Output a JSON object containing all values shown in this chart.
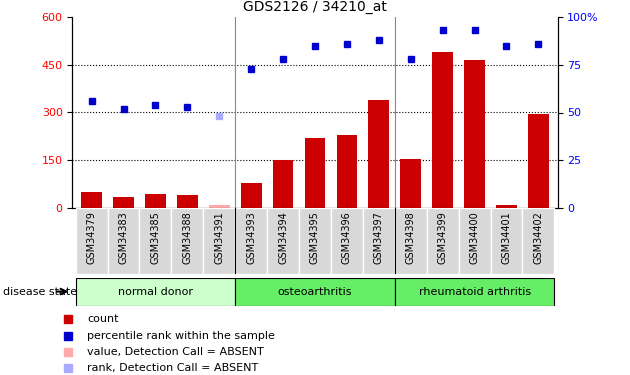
{
  "title": "GDS2126 / 34210_at",
  "samples": [
    "GSM34379",
    "GSM34383",
    "GSM34385",
    "GSM34388",
    "GSM34391",
    "GSM34393",
    "GSM34394",
    "GSM34395",
    "GSM34396",
    "GSM34397",
    "GSM34398",
    "GSM34399",
    "GSM34400",
    "GSM34401",
    "GSM34402"
  ],
  "bar_values": [
    50,
    35,
    45,
    40,
    10,
    80,
    150,
    220,
    230,
    340,
    155,
    490,
    465,
    10,
    295
  ],
  "bar_absent": [
    false,
    false,
    false,
    false,
    true,
    false,
    false,
    false,
    false,
    false,
    false,
    false,
    false,
    false,
    false
  ],
  "blue_values": [
    56,
    52,
    54,
    53,
    48,
    73,
    78,
    85,
    86,
    88,
    78,
    93,
    93,
    85,
    86
  ],
  "blue_absent": [
    false,
    false,
    false,
    false,
    true,
    false,
    false,
    false,
    false,
    false,
    false,
    false,
    false,
    false,
    false
  ],
  "group_ends": [
    5,
    10,
    15
  ],
  "group_labels": [
    "normal donor",
    "osteoarthritis",
    "rheumatoid arthritis"
  ],
  "group_colors": [
    "#ccffcc",
    "#66ee66",
    "#66ee66"
  ],
  "ylim_left": [
    0,
    600
  ],
  "ylim_right": [
    0,
    100
  ],
  "yticks_left": [
    0,
    150,
    300,
    450,
    600
  ],
  "yticks_right": [
    0,
    25,
    50,
    75,
    100
  ],
  "bar_color": "#cc0000",
  "bar_absent_color": "#ffaaaa",
  "blue_color": "#0000cc",
  "blue_absent_color": "#aaaaff",
  "bg_color": "#d8d8d8",
  "disease_state_label": "disease state",
  "legend": [
    {
      "label": "count",
      "color": "#cc0000"
    },
    {
      "label": "percentile rank within the sample",
      "color": "#0000cc"
    },
    {
      "label": "value, Detection Call = ABSENT",
      "color": "#ffaaaa"
    },
    {
      "label": "rank, Detection Call = ABSENT",
      "color": "#aaaaff"
    }
  ]
}
